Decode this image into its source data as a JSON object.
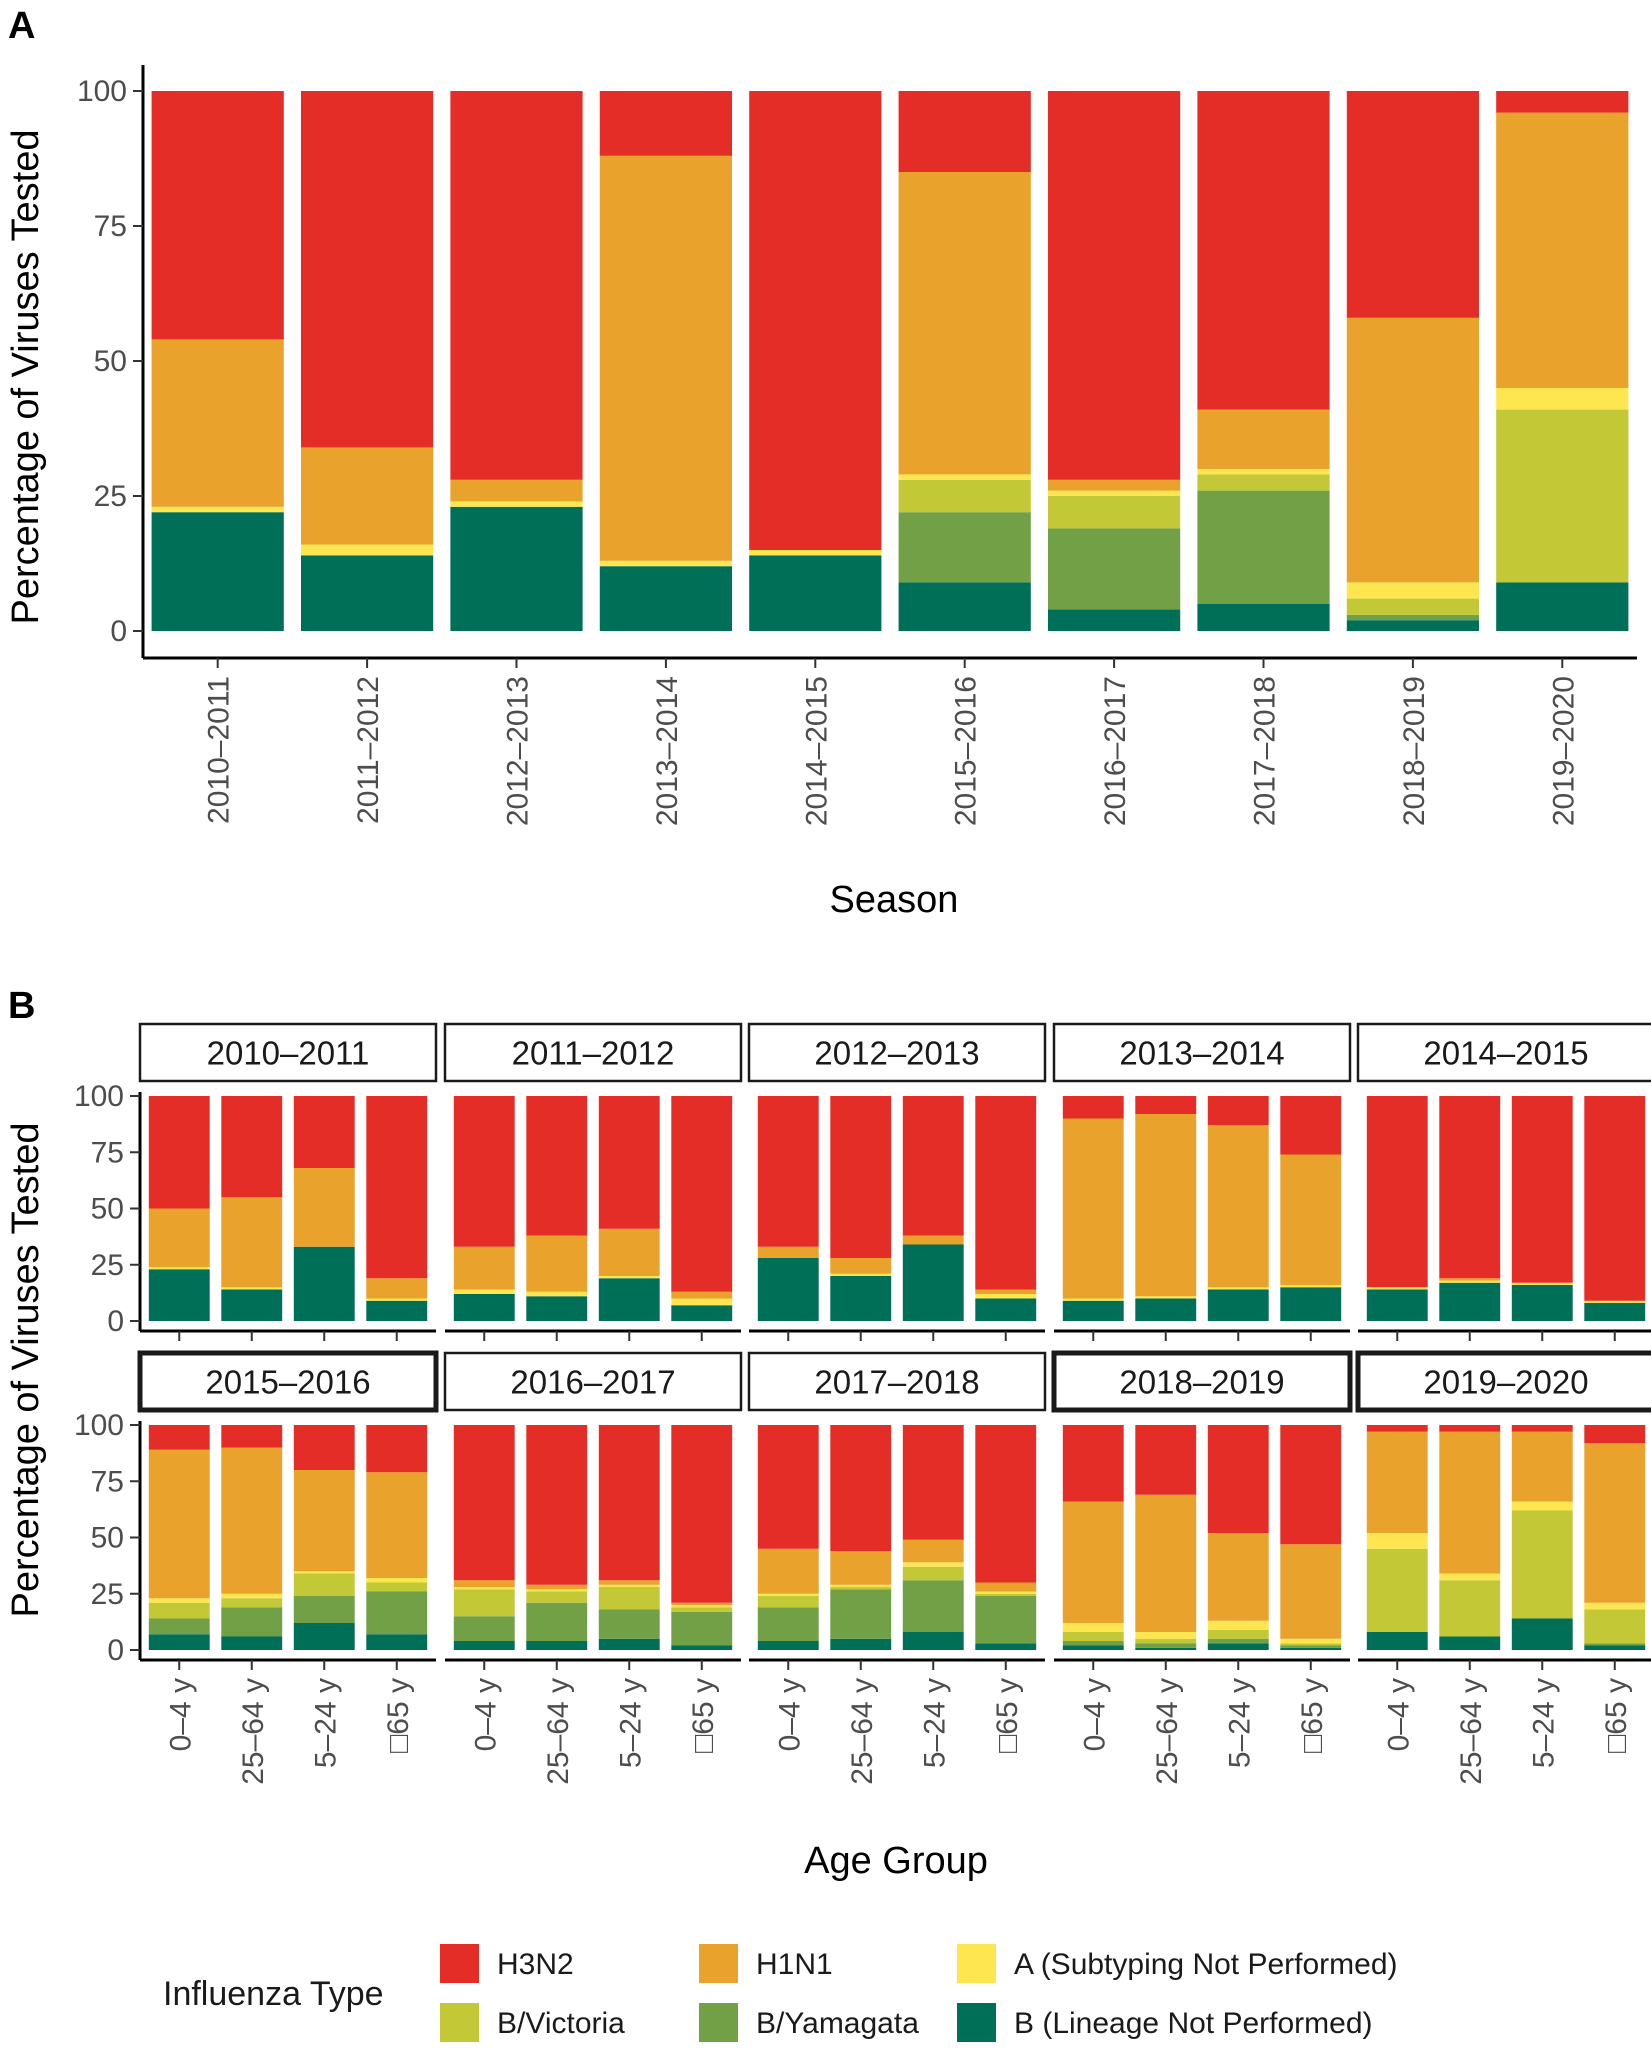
{
  "colors": {
    "H3N2": "#e52d27",
    "H1N1": "#e9a22b",
    "A (Subtyping Not Performed)": "#fde64f",
    "B/Victoria": "#c3c936",
    "B/Yamagata": "#72a046",
    "B (Lineage Not Performed)": "#006f58"
  },
  "legend": {
    "title": "Influenza Type",
    "items": [
      "H3N2",
      "H1N1",
      "A (Subtyping Not Performed)",
      "B/Victoria",
      "B/Yamagata",
      "B (Lineage Not Performed)"
    ]
  },
  "chart_data": [
    {
      "panel": "A",
      "type": "bar",
      "stacked": true,
      "xlabel": "Season",
      "ylabel": "Percentage of Viruses Tested",
      "ylim": [
        0,
        100
      ],
      "yticks": [
        0,
        25,
        50,
        75,
        100
      ],
      "stack_order_bottom_to_top": [
        "B (Lineage Not Performed)",
        "B/Yamagata",
        "B/Victoria",
        "A (Subtyping Not Performed)",
        "H1N1",
        "H3N2"
      ],
      "categories": [
        "2010–2011",
        "2011–2012",
        "2012–2013",
        "2013–2014",
        "2014–2015",
        "2015–2016",
        "2016–2017",
        "2017–2018",
        "2018–2019",
        "2019–2020"
      ],
      "series": [
        {
          "name": "B (Lineage Not Performed)",
          "values": [
            22,
            14,
            23,
            12,
            14,
            9,
            4,
            5,
            2,
            9
          ]
        },
        {
          "name": "B/Yamagata",
          "values": [
            0,
            0,
            0,
            0,
            0,
            13,
            15,
            21,
            1,
            0
          ]
        },
        {
          "name": "B/Victoria",
          "values": [
            0,
            0,
            0,
            0,
            0,
            6,
            6,
            3,
            3,
            32
          ]
        },
        {
          "name": "A (Subtyping Not Performed)",
          "values": [
            1,
            2,
            1,
            1,
            1,
            1,
            1,
            1,
            3,
            4
          ]
        },
        {
          "name": "H1N1",
          "values": [
            31,
            18,
            4,
            75,
            0,
            56,
            2,
            11,
            49,
            51
          ]
        },
        {
          "name": "H3N2",
          "values": [
            46,
            66,
            72,
            12,
            85,
            15,
            72,
            59,
            42,
            4
          ]
        }
      ]
    },
    {
      "panel": "B",
      "type": "bar",
      "stacked": true,
      "facet": "season",
      "xlabel": "Age Group",
      "ylabel": "Percentage of Viruses Tested",
      "ylim": [
        0,
        100
      ],
      "yticks": [
        0,
        25,
        50,
        75,
        100
      ],
      "categories": [
        "0–4 y",
        "25–64 y",
        "5–24 y",
        "□65 y"
      ],
      "facets": [
        {
          "season": "2010–2011",
          "highlight": false,
          "series": [
            {
              "name": "B (Lineage Not Performed)",
              "values": [
                23,
                14,
                33,
                9
              ]
            },
            {
              "name": "B/Yamagata",
              "values": [
                0,
                0,
                0,
                0
              ]
            },
            {
              "name": "B/Victoria",
              "values": [
                0,
                0,
                0,
                0
              ]
            },
            {
              "name": "A (Subtyping Not Performed)",
              "values": [
                1,
                1,
                0,
                1
              ]
            },
            {
              "name": "H1N1",
              "values": [
                26,
                40,
                35,
                9
              ]
            },
            {
              "name": "H3N2",
              "values": [
                50,
                45,
                32,
                81
              ]
            }
          ]
        },
        {
          "season": "2011–2012",
          "highlight": false,
          "series": [
            {
              "name": "B (Lineage Not Performed)",
              "values": [
                12,
                11,
                19,
                7
              ]
            },
            {
              "name": "B/Yamagata",
              "values": [
                0,
                0,
                0,
                0
              ]
            },
            {
              "name": "B/Victoria",
              "values": [
                0,
                0,
                0,
                0
              ]
            },
            {
              "name": "A (Subtyping Not Performed)",
              "values": [
                2,
                2,
                1,
                3
              ]
            },
            {
              "name": "H1N1",
              "values": [
                19,
                25,
                21,
                3
              ]
            },
            {
              "name": "H3N2",
              "values": [
                67,
                62,
                59,
                87
              ]
            }
          ]
        },
        {
          "season": "2012–2013",
          "highlight": false,
          "series": [
            {
              "name": "B (Lineage Not Performed)",
              "values": [
                28,
                20,
                34,
                10
              ]
            },
            {
              "name": "B/Yamagata",
              "values": [
                0,
                0,
                0,
                0
              ]
            },
            {
              "name": "B/Victoria",
              "values": [
                0,
                0,
                0,
                0
              ]
            },
            {
              "name": "A (Subtyping Not Performed)",
              "values": [
                0,
                1,
                0,
                2
              ]
            },
            {
              "name": "H1N1",
              "values": [
                5,
                7,
                4,
                2
              ]
            },
            {
              "name": "H3N2",
              "values": [
                67,
                72,
                62,
                86
              ]
            }
          ]
        },
        {
          "season": "2013–2014",
          "highlight": false,
          "series": [
            {
              "name": "B (Lineage Not Performed)",
              "values": [
                9,
                10,
                14,
                15
              ]
            },
            {
              "name": "B/Yamagata",
              "values": [
                0,
                0,
                0,
                0
              ]
            },
            {
              "name": "B/Victoria",
              "values": [
                0,
                0,
                0,
                0
              ]
            },
            {
              "name": "A (Subtyping Not Performed)",
              "values": [
                1,
                1,
                1,
                1
              ]
            },
            {
              "name": "H1N1",
              "values": [
                80,
                81,
                72,
                58
              ]
            },
            {
              "name": "H3N2",
              "values": [
                10,
                8,
                13,
                26
              ]
            }
          ]
        },
        {
          "season": "2014–2015",
          "highlight": false,
          "series": [
            {
              "name": "B (Lineage Not Performed)",
              "values": [
                14,
                17,
                16,
                8
              ]
            },
            {
              "name": "B/Yamagata",
              "values": [
                0,
                0,
                0,
                0
              ]
            },
            {
              "name": "B/Victoria",
              "values": [
                0,
                0,
                0,
                0
              ]
            },
            {
              "name": "A (Subtyping Not Performed)",
              "values": [
                1,
                1,
                1,
                1
              ]
            },
            {
              "name": "H1N1",
              "values": [
                0,
                1,
                0,
                0
              ]
            },
            {
              "name": "H3N2",
              "values": [
                85,
                81,
                83,
                91
              ]
            }
          ]
        },
        {
          "season": "2015–2016",
          "highlight": true,
          "series": [
            {
              "name": "B (Lineage Not Performed)",
              "values": [
                7,
                6,
                12,
                7
              ]
            },
            {
              "name": "B/Yamagata",
              "values": [
                7,
                13,
                12,
                19
              ]
            },
            {
              "name": "B/Victoria",
              "values": [
                7,
                4,
                10,
                4
              ]
            },
            {
              "name": "A (Subtyping Not Performed)",
              "values": [
                2,
                2,
                1,
                2
              ]
            },
            {
              "name": "H1N1",
              "values": [
                66,
                65,
                45,
                47
              ]
            },
            {
              "name": "H3N2",
              "values": [
                11,
                10,
                20,
                21
              ]
            }
          ]
        },
        {
          "season": "2016–2017",
          "highlight": false,
          "series": [
            {
              "name": "B (Lineage Not Performed)",
              "values": [
                4,
                4,
                5,
                2
              ]
            },
            {
              "name": "B/Yamagata",
              "values": [
                11,
                17,
                13,
                15
              ]
            },
            {
              "name": "B/Victoria",
              "values": [
                12,
                5,
                10,
                2
              ]
            },
            {
              "name": "A (Subtyping Not Performed)",
              "values": [
                1,
                1,
                1,
                1
              ]
            },
            {
              "name": "H1N1",
              "values": [
                3,
                2,
                2,
                1
              ]
            },
            {
              "name": "H3N2",
              "values": [
                69,
                71,
                69,
                79
              ]
            }
          ]
        },
        {
          "season": "2017–2018",
          "highlight": false,
          "series": [
            {
              "name": "B (Lineage Not Performed)",
              "values": [
                4,
                5,
                8,
                3
              ]
            },
            {
              "name": "B/Yamagata",
              "values": [
                15,
                22,
                23,
                21
              ]
            },
            {
              "name": "B/Victoria",
              "values": [
                5,
                1,
                6,
                1
              ]
            },
            {
              "name": "A (Subtyping Not Performed)",
              "values": [
                1,
                1,
                2,
                1
              ]
            },
            {
              "name": "H1N1",
              "values": [
                20,
                15,
                10,
                4
              ]
            },
            {
              "name": "H3N2",
              "values": [
                55,
                56,
                51,
                70
              ]
            }
          ]
        },
        {
          "season": "2018–2019",
          "highlight": true,
          "series": [
            {
              "name": "B (Lineage Not Performed)",
              "values": [
                2,
                1,
                3,
                1
              ]
            },
            {
              "name": "B/Yamagata",
              "values": [
                2,
                2,
                2,
                1
              ]
            },
            {
              "name": "B/Victoria",
              "values": [
                4,
                2,
                4,
                1
              ]
            },
            {
              "name": "A (Subtyping Not Performed)",
              "values": [
                4,
                3,
                4,
                2
              ]
            },
            {
              "name": "H1N1",
              "values": [
                54,
                61,
                39,
                42
              ]
            },
            {
              "name": "H3N2",
              "values": [
                34,
                31,
                48,
                53
              ]
            }
          ]
        },
        {
          "season": "2019–2020",
          "highlight": true,
          "series": [
            {
              "name": "B (Lineage Not Performed)",
              "values": [
                8,
                6,
                14,
                2
              ]
            },
            {
              "name": "B/Yamagata",
              "values": [
                0,
                0,
                0,
                1
              ]
            },
            {
              "name": "B/Victoria",
              "values": [
                37,
                25,
                48,
                15
              ]
            },
            {
              "name": "A (Subtyping Not Performed)",
              "values": [
                7,
                3,
                4,
                3
              ]
            },
            {
              "name": "H1N1",
              "values": [
                45,
                63,
                31,
                71
              ]
            },
            {
              "name": "H3N2",
              "values": [
                3,
                3,
                3,
                8
              ]
            }
          ]
        }
      ]
    }
  ]
}
